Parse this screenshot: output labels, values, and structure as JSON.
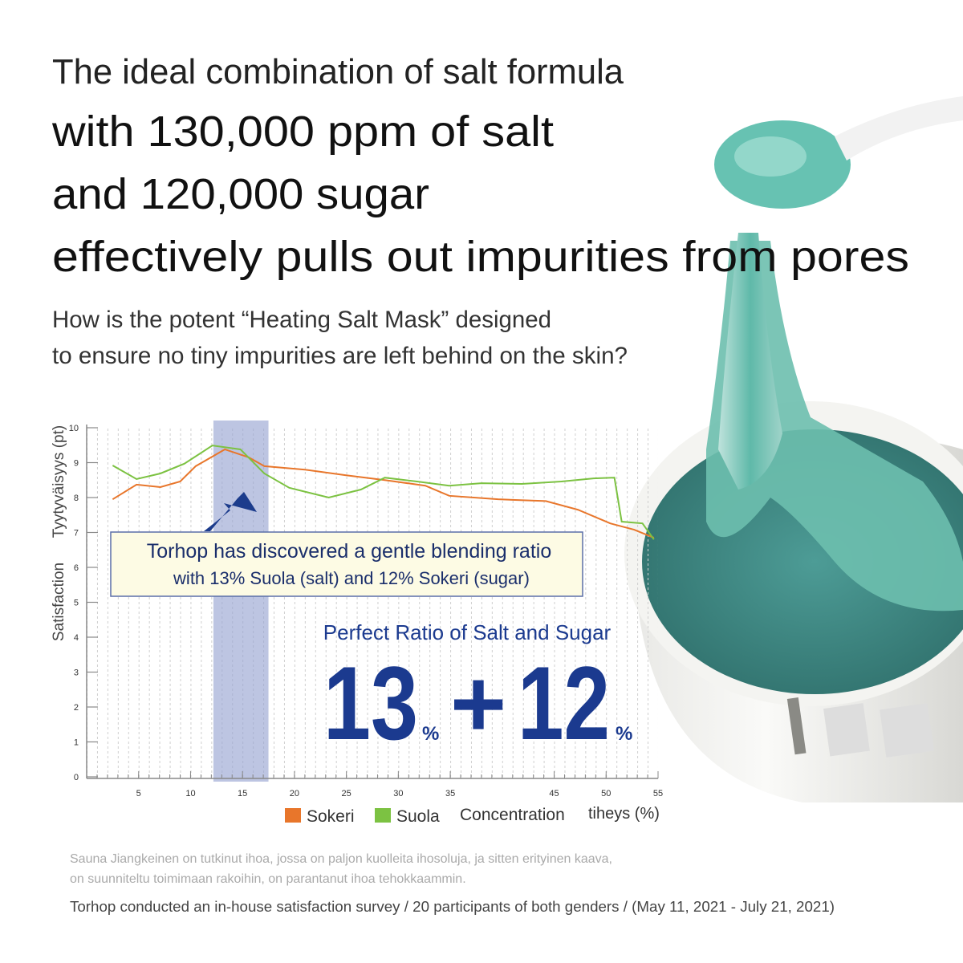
{
  "header": {
    "lines": [
      "The ideal combination of salt formula",
      "with 130,000 ppm of salt",
      "and 120,000 sugar",
      "effectively pulls out impurities from pores"
    ],
    "question": [
      "How is the potent “Heating Salt Mask” designed",
      "to ensure no tiny impurities are left behind on the skin?"
    ]
  },
  "callout": [
    "Torhop has discovered a gentle blending ratio",
    "with 13% Suola (salt) and 12% Sokeri (sugar)"
  ],
  "ratio": {
    "title": "Perfect Ratio of Salt and Sugar",
    "salt": "13",
    "salt_unit": "%",
    "plus": "+",
    "sugar": "12",
    "sugar_unit": "%"
  },
  "footnotes": [
    "Sauna Jiangkeinen on tutkinut ihoa, jossa on paljon kuolleita ihosoluja, ja sitten erityinen kaava,",
    "on suunniteltu toimimaan rakoihin, on parantanut ihoa tehokkaammin.",
    "Torhop conducted an in-house satisfaction survey / 20 participants of both genders / (May 11, 2021 - July 21, 2021)"
  ],
  "chart_data": {
    "type": "line",
    "y_label": [
      "Tyytyväisyys (pt)",
      "Satisfaction"
    ],
    "x_label": [
      "Concentration",
      "tiheys (%)"
    ],
    "xlim": [
      0,
      55
    ],
    "ylim": [
      0,
      10
    ],
    "xticks": [
      5,
      10,
      15,
      20,
      25,
      30,
      35,
      45,
      50,
      55
    ],
    "yticks": [
      0,
      1,
      2,
      3,
      4,
      5,
      6,
      7,
      8,
      9,
      10
    ],
    "highlight_range": [
      12.2,
      17.5
    ],
    "series": [
      {
        "name": "Sokeri",
        "color": "#e8762b",
        "x": [
          2.5,
          4.8,
          7.1,
          9.0,
          10.5,
          13.3,
          15.6,
          17.1,
          21,
          24.9,
          28.7,
          32.6,
          34.9,
          39.6,
          44.2,
          47.3,
          50.4,
          52.7,
          54.6
        ],
        "values": [
          7.95,
          8.37,
          8.3,
          8.46,
          8.9,
          9.38,
          9.15,
          8.9,
          8.8,
          8.64,
          8.5,
          8.34,
          8.05,
          7.95,
          7.9,
          7.65,
          7.26,
          7.08,
          6.85
        ]
      },
      {
        "name": "Suola",
        "color": "#7cc242",
        "x": [
          2.5,
          4.8,
          7.1,
          9.4,
          12.1,
          14.8,
          17.1,
          19.5,
          23.3,
          26.4,
          28.7,
          31.8,
          34.9,
          38,
          41.9,
          45.7,
          48.8,
          50.8,
          51.5,
          53.5,
          54.6
        ],
        "values": [
          8.92,
          8.53,
          8.69,
          8.97,
          9.49,
          9.38,
          8.69,
          8.28,
          8.0,
          8.23,
          8.57,
          8.46,
          8.34,
          8.41,
          8.39,
          8.46,
          8.55,
          8.57,
          7.31,
          7.26,
          6.8
        ]
      }
    ]
  }
}
